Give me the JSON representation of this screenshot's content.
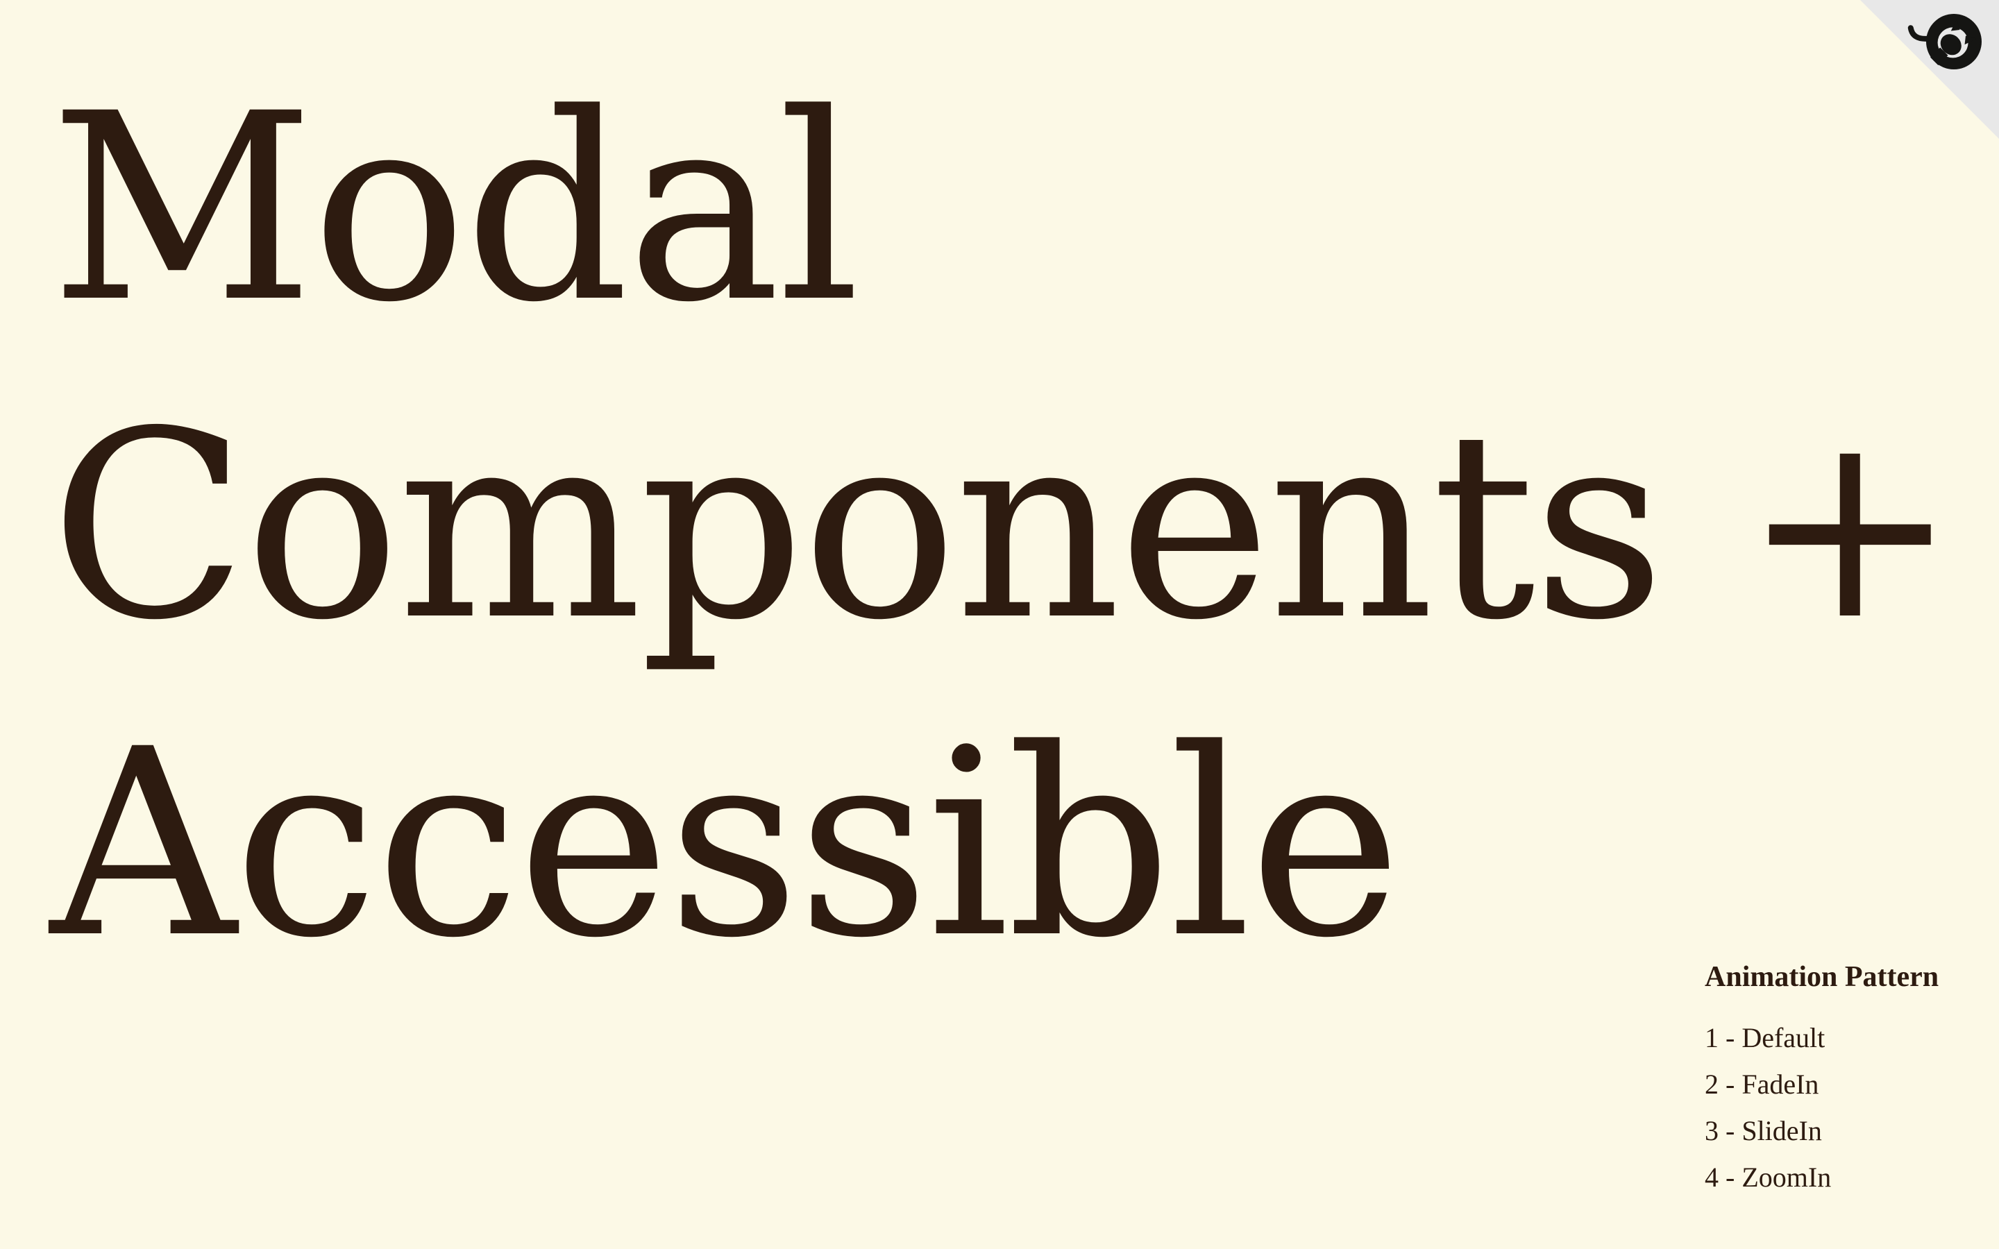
{
  "hero": {
    "lines": [
      "Modal",
      "Components +",
      "Accessible"
    ]
  },
  "corner_link": {
    "icon": "github-octocat-icon",
    "corner_color": "#e8e8e8",
    "icon_color": "#151513"
  },
  "animation_menu": {
    "heading": "Animation Pattern",
    "items": [
      {
        "label": "1 - Default"
      },
      {
        "label": "2 - FadeIn"
      },
      {
        "label": "3 - SlideIn"
      },
      {
        "label": "4 - ZoomIn"
      }
    ]
  },
  "colors": {
    "background": "#fcf9e6",
    "text": "#2d1b10"
  }
}
